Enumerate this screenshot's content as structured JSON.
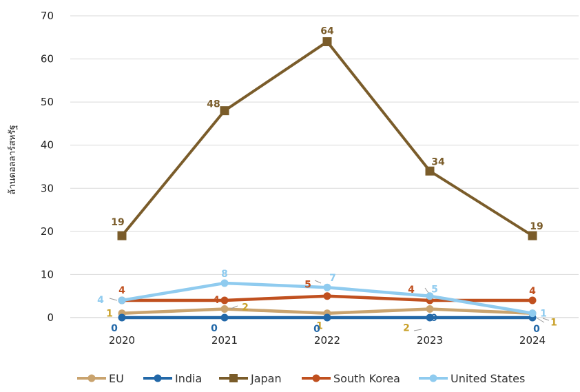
{
  "chart_data": {
    "type": "line",
    "title": "",
    "xlabel": "",
    "ylabel": "ล้านดอลลาร์สหรัฐ",
    "ylim": [
      0,
      70
    ],
    "y_ticks": [
      0,
      10,
      20,
      30,
      40,
      50,
      60,
      70
    ],
    "categories": [
      "2020",
      "2021",
      "2022",
      "2023",
      "2024"
    ],
    "grid": true,
    "legend_position": "bottom",
    "series": [
      {
        "name": "EU",
        "values": [
          1,
          2,
          1,
          2,
          1
        ],
        "color": "#C9A36E",
        "marker": "circle"
      },
      {
        "name": "India",
        "values": [
          0,
          0,
          0,
          0,
          0
        ],
        "color": "#2268A8",
        "marker": "circle"
      },
      {
        "name": "Japan",
        "values": [
          19,
          48,
          64,
          34,
          19
        ],
        "color": "#7A5C2A",
        "marker": "square"
      },
      {
        "name": "South Korea",
        "values": [
          4,
          4,
          5,
          4,
          4
        ],
        "color": "#C0501F",
        "marker": "circle"
      },
      {
        "name": "United States",
        "values": [
          4,
          8,
          7,
          5,
          1
        ],
        "color": "#8FCBEF",
        "marker": "circle"
      }
    ]
  }
}
